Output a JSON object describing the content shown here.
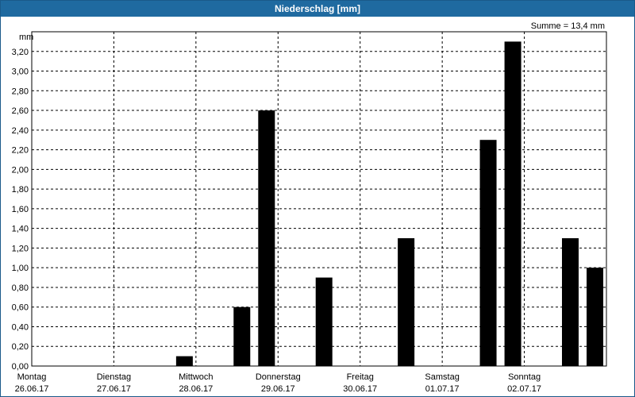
{
  "window": {
    "title": "Niederschlag [mm]"
  },
  "chart_data": {
    "type": "bar",
    "title": "Niederschlag [mm]",
    "summary_label": "Summe = 13,4 mm",
    "ylabel": "mm",
    "ylim": [
      0,
      3.4
    ],
    "y_ticks": [
      "0,00",
      "0,20",
      "0,40",
      "0,60",
      "0,80",
      "1,00",
      "1,20",
      "1,40",
      "1,60",
      "1,80",
      "2,00",
      "2,20",
      "2,40",
      "2,60",
      "2,80",
      "3,00",
      "3,20"
    ],
    "y_tick_values": [
      0,
      0.2,
      0.4,
      0.6,
      0.8,
      1.0,
      1.2,
      1.4,
      1.6,
      1.8,
      2.0,
      2.2,
      2.4,
      2.6,
      2.8,
      3.0,
      3.2
    ],
    "days": [
      {
        "weekday": "Montag",
        "date": "26.06.17"
      },
      {
        "weekday": "Dienstag",
        "date": "27.06.17"
      },
      {
        "weekday": "Mittwoch",
        "date": "28.06.17"
      },
      {
        "weekday": "Donnerstag",
        "date": "29.06.17"
      },
      {
        "weekday": "Freitag",
        "date": "30.06.17"
      },
      {
        "weekday": "Samstag",
        "date": "01.07.17"
      },
      {
        "weekday": "Sonntag",
        "date": "02.07.17"
      }
    ],
    "bars": [
      {
        "day_index": 1,
        "slot": 1,
        "value": 0.1
      },
      {
        "day_index": 2,
        "slot": 0,
        "value": 0.6
      },
      {
        "day_index": 2,
        "slot": 1,
        "value": 2.6
      },
      {
        "day_index": 3,
        "slot": 0,
        "value": 0.9
      },
      {
        "day_index": 4,
        "slot": 0,
        "value": 1.3
      },
      {
        "day_index": 5,
        "slot": 0,
        "value": 2.3
      },
      {
        "day_index": 5,
        "slot": 1,
        "value": 3.3
      },
      {
        "day_index": 6,
        "slot": 0,
        "value": 1.3
      },
      {
        "day_index": 6,
        "slot": 1,
        "value": 1.0
      }
    ],
    "bar_color": "#000000",
    "grid": true
  }
}
